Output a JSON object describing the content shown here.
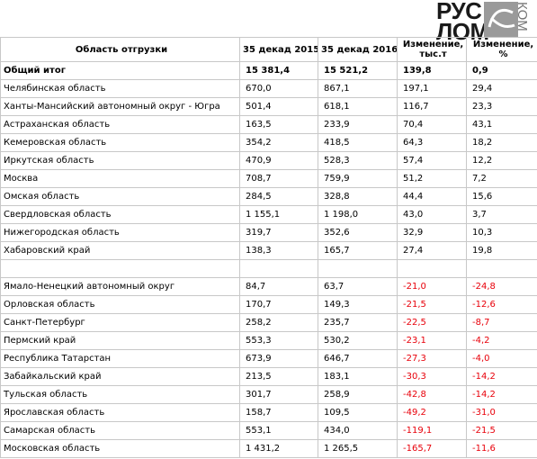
{
  "logo": {
    "line1": "РУС",
    "line2": "ЛОМ",
    "suffix": "КОМ"
  },
  "header": {
    "region": "Область отгрузки",
    "y2015": "35 декад 2015",
    "y2016": "35 декад 2016",
    "change_abs": "Изменение, тыс.т",
    "change_pct": "Изменение, %"
  },
  "total": {
    "region": "Общий итог",
    "y2015": "15 381,4",
    "y2016": "15 521,2",
    "change_abs": "139,8",
    "change_pct": "0,9"
  },
  "growth_rows": [
    {
      "region": "Челябинская область",
      "y2015": "670,0",
      "y2016": "867,1",
      "change_abs": "197,1",
      "change_pct": "29,4"
    },
    {
      "region": "Ханты-Мансийский автономный округ - Югра",
      "y2015": "501,4",
      "y2016": "618,1",
      "change_abs": "116,7",
      "change_pct": "23,3"
    },
    {
      "region": "Астраханская область",
      "y2015": "163,5",
      "y2016": "233,9",
      "change_abs": "70,4",
      "change_pct": "43,1"
    },
    {
      "region": "Кемеровская область",
      "y2015": "354,2",
      "y2016": "418,5",
      "change_abs": "64,3",
      "change_pct": "18,2"
    },
    {
      "region": "Иркутская область",
      "y2015": "470,9",
      "y2016": "528,3",
      "change_abs": "57,4",
      "change_pct": "12,2"
    },
    {
      "region": "Москва",
      "y2015": "708,7",
      "y2016": "759,9",
      "change_abs": "51,2",
      "change_pct": "7,2"
    },
    {
      "region": "Омская область",
      "y2015": "284,5",
      "y2016": "328,8",
      "change_abs": "44,4",
      "change_pct": "15,6"
    },
    {
      "region": "Свердловская область",
      "y2015": "1 155,1",
      "y2016": "1 198,0",
      "change_abs": "43,0",
      "change_pct": "3,7"
    },
    {
      "region": "Нижегородская область",
      "y2015": "319,7",
      "y2016": "352,6",
      "change_abs": "32,9",
      "change_pct": "10,3"
    },
    {
      "region": "Хабаровский край",
      "y2015": "138,3",
      "y2016": "165,7",
      "change_abs": "27,4",
      "change_pct": "19,8"
    }
  ],
  "decline_rows": [
    {
      "region": "Ямало-Ненецкий автономный округ",
      "y2015": "84,7",
      "y2016": "63,7",
      "change_abs": "-21,0",
      "change_pct": "-24,8"
    },
    {
      "region": "Орловская область",
      "y2015": "170,7",
      "y2016": "149,3",
      "change_abs": "-21,5",
      "change_pct": "-12,6"
    },
    {
      "region": "Санкт-Петербург",
      "y2015": "258,2",
      "y2016": "235,7",
      "change_abs": "-22,5",
      "change_pct": "-8,7"
    },
    {
      "region": "Пермский край",
      "y2015": "553,3",
      "y2016": "530,2",
      "change_abs": "-23,1",
      "change_pct": "-4,2"
    },
    {
      "region": "Республика Татарстан",
      "y2015": "673,9",
      "y2016": "646,7",
      "change_abs": "-27,3",
      "change_pct": "-4,0"
    },
    {
      "region": "Забайкальский край",
      "y2015": "213,5",
      "y2016": "183,1",
      "change_abs": "-30,3",
      "change_pct": "-14,2"
    },
    {
      "region": "Тульская область",
      "y2015": "301,7",
      "y2016": "258,9",
      "change_abs": "-42,8",
      "change_pct": "-14,2"
    },
    {
      "region": "Ярославская область",
      "y2015": "158,7",
      "y2016": "109,5",
      "change_abs": "-49,2",
      "change_pct": "-31,0"
    },
    {
      "region": "Самарская область",
      "y2015": "553,1",
      "y2016": "434,0",
      "change_abs": "-119,1",
      "change_pct": "-21,5"
    },
    {
      "region": "Московская область",
      "y2015": "1 431,2",
      "y2016": "1 265,5",
      "change_abs": "-165,7",
      "change_pct": "-11,6"
    }
  ],
  "colors": {
    "negative": "#e8000a",
    "grid": "#c8c8c8"
  }
}
